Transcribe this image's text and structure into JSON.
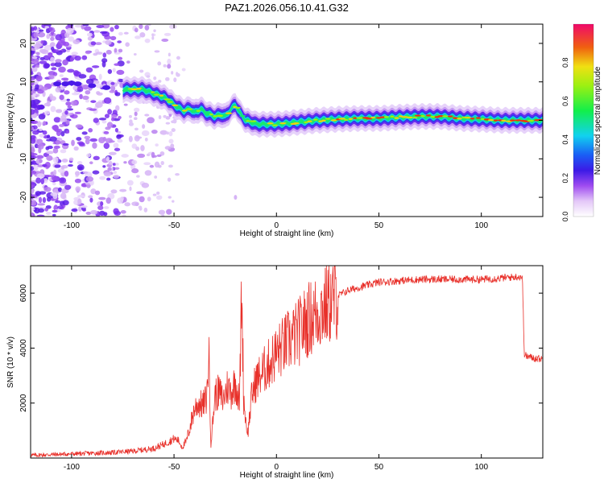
{
  "title": "PAZ1.2026.056.10.41.G32",
  "chart_data": [
    {
      "type": "heatmap",
      "xlabel": "Height of straight line (km)",
      "ylabel": "Frequency (Hz)",
      "xlim": [
        -120,
        130
      ],
      "ylim": [
        -25,
        25
      ],
      "xticks": [
        -100,
        -50,
        0,
        50,
        100
      ],
      "xtick_labels": [
        "-100",
        "-50",
        "0",
        "50",
        "100"
      ],
      "yticks": [
        -20,
        -10,
        0,
        10,
        20
      ],
      "ytick_labels": [
        "-20",
        "-10",
        "0",
        "10",
        "20"
      ],
      "colorbar": {
        "label": "Normalized spectral amplitude",
        "range": [
          0,
          1
        ],
        "ticks": [
          0.0,
          0.2,
          0.4,
          0.6,
          0.8
        ],
        "tick_labels": [
          "0.0",
          "0.2",
          "0.4",
          "0.6",
          "0.8"
        ]
      },
      "ridge": {
        "x": [
          -75,
          -70,
          -65,
          -60,
          -55,
          -52,
          -50,
          -47,
          -45,
          -42,
          -40,
          -37,
          -35,
          -30,
          -27,
          -25,
          -22,
          -20,
          -18,
          -15,
          -12,
          -10,
          -5,
          0,
          5,
          10,
          20,
          30,
          40,
          50,
          60,
          70,
          80,
          90,
          100,
          110,
          120,
          130
        ],
        "y": [
          8,
          8,
          8,
          7,
          6,
          5,
          4,
          3,
          2.5,
          3,
          2,
          3,
          2,
          1,
          1.5,
          1,
          3,
          4,
          2,
          0,
          -0.5,
          -1,
          -1,
          -1,
          -0.8,
          -0.5,
          0,
          0.3,
          0.5,
          0.5,
          0.8,
          1,
          1,
          0.5,
          0.3,
          0,
          0,
          0
        ]
      }
    },
    {
      "type": "line",
      "xlabel": "Height of straight line (km)",
      "ylabel": "SNR (10 * v/v)",
      "xlim": [
        -120,
        130
      ],
      "ylim": [
        0,
        7000
      ],
      "xticks": [
        -100,
        -50,
        0,
        50,
        100
      ],
      "xtick_labels": [
        "-100",
        "-50",
        "0",
        "50",
        "100"
      ],
      "yticks": [
        2000,
        4000,
        6000
      ],
      "ytick_labels": [
        "2000",
        "4000",
        "6000"
      ],
      "color": "#e8302a",
      "series": [
        {
          "name": "SNR",
          "x": [
            -120,
            -100,
            -80,
            -70,
            -60,
            -55,
            -50,
            -48,
            -46,
            -44,
            -42,
            -40,
            -38,
            -36,
            -34,
            -33,
            -32,
            -30,
            -28,
            -26,
            -24,
            -22,
            -20,
            -18,
            -17,
            -16,
            -15,
            -14,
            -12,
            -10,
            -5,
            0,
            5,
            10,
            15,
            20,
            25,
            30,
            35,
            40,
            50,
            60,
            70,
            80,
            90,
            100,
            110,
            118,
            120,
            121,
            122,
            125,
            130
          ],
          "y": [
            100,
            150,
            200,
            250,
            350,
            500,
            700,
            650,
            400,
            600,
            1200,
            1800,
            2000,
            1900,
            2200,
            3900,
            500,
            2300,
            2400,
            2100,
            2600,
            2400,
            2800,
            2000,
            6300,
            2200,
            1400,
            900,
            2300,
            2800,
            3300,
            3800,
            4200,
            4500,
            5000,
            5300,
            5600,
            5900,
            6100,
            6200,
            6400,
            6450,
            6500,
            6500,
            6500,
            6500,
            6550,
            6600,
            6600,
            3800,
            3700,
            3650,
            3600
          ]
        }
      ]
    }
  ]
}
